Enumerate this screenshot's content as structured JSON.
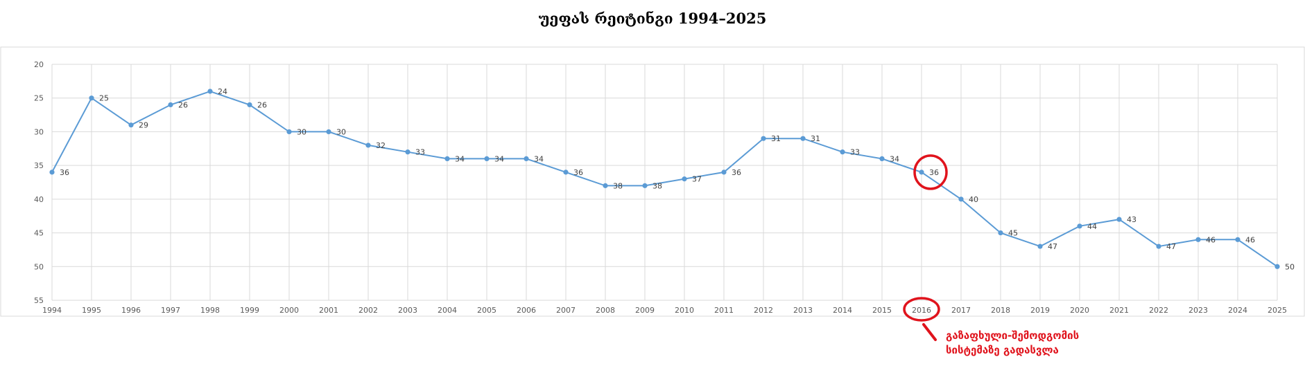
{
  "chart_data": {
    "type": "line",
    "title": "უეფას რეიტინგი 1994–2025",
    "xlabel": "",
    "ylabel": "",
    "ylim": [
      20,
      55
    ],
    "y_inverted": true,
    "y_ticks": [
      "20",
      "25",
      "30",
      "35",
      "40",
      "45",
      "50",
      "55"
    ],
    "grid": true,
    "legend": "none",
    "x": [
      "1994",
      "1995",
      "1996",
      "1997",
      "1998",
      "1999",
      "2000",
      "2001",
      "2002",
      "2003",
      "2004",
      "2005",
      "2006",
      "2007",
      "2008",
      "2009",
      "2010",
      "2011",
      "2012",
      "2013",
      "2014",
      "2015",
      "2016",
      "2017",
      "2018",
      "2019",
      "2020",
      "2021",
      "2022",
      "2023",
      "2024",
      "2025"
    ],
    "series": [
      {
        "values": [
          36,
          25,
          29,
          26,
          24,
          26,
          30,
          30,
          32,
          33,
          34,
          34,
          34,
          36,
          38,
          38,
          37,
          36,
          31,
          31,
          33,
          34,
          36,
          40,
          45,
          47,
          44,
          43,
          47,
          46,
          46,
          50
        ],
        "color": "#5b9bd5"
      }
    ],
    "annotation": {
      "text_line1": "გაზაფხული-შემოდგომის",
      "text_line2": "სისტემაზე გადასვლა",
      "target_year": "2016",
      "color": "#e0131c"
    }
  }
}
